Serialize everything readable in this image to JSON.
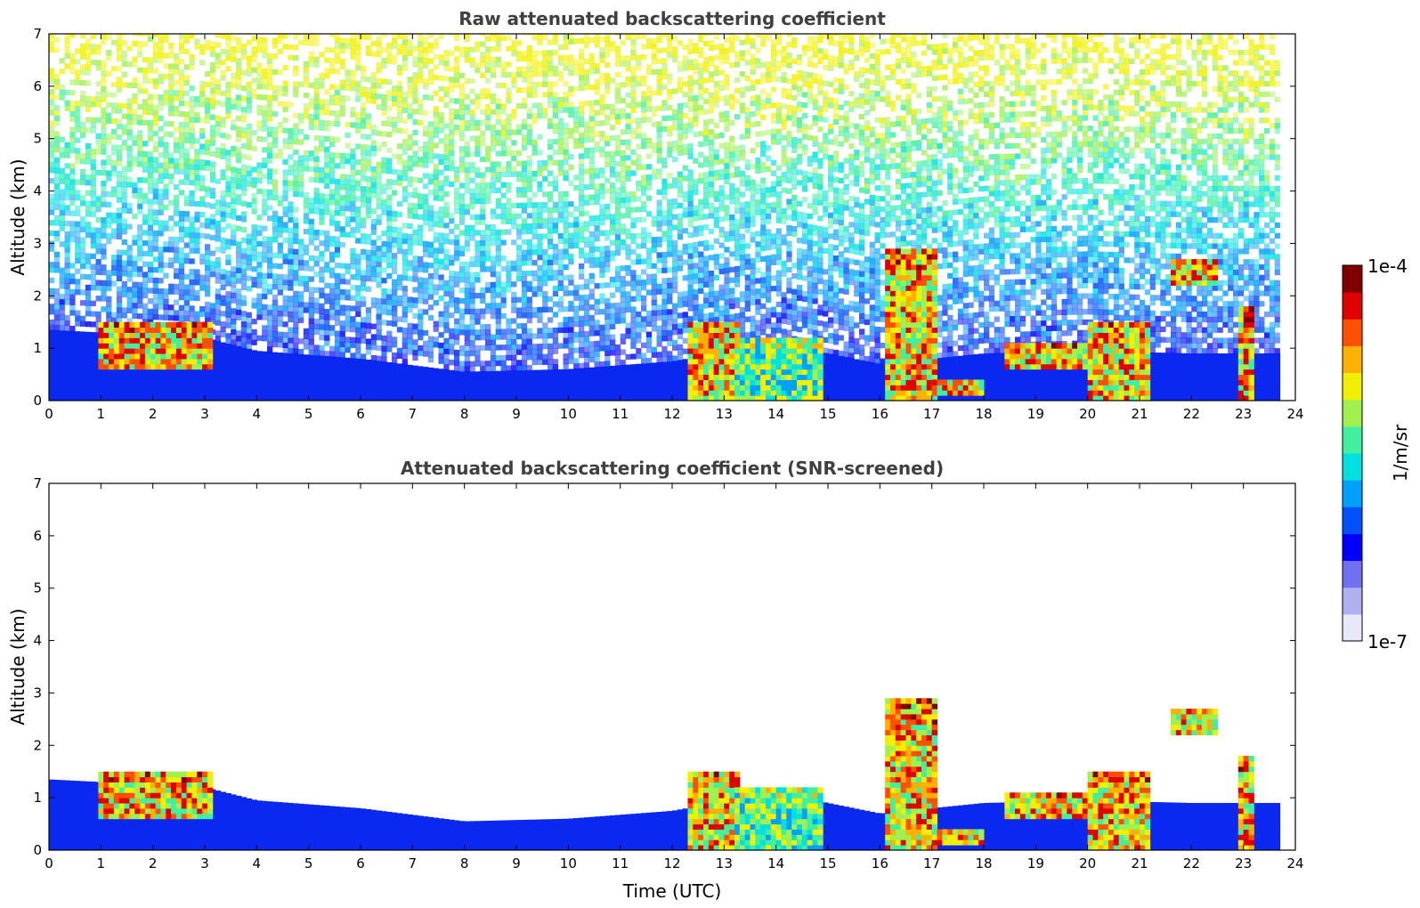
{
  "chart_data": [
    {
      "type": "heatmap",
      "title": "Raw attenuated backscattering coefficient",
      "xlabel": "",
      "ylabel": "Altitude (km)",
      "xlim": [
        0,
        24
      ],
      "ylim": [
        0,
        7
      ],
      "xticks": [
        "0",
        "1",
        "2",
        "3",
        "4",
        "5",
        "6",
        "7",
        "8",
        "9",
        "10",
        "11",
        "12",
        "13",
        "14",
        "15",
        "16",
        "17",
        "18",
        "19",
        "20",
        "21",
        "22",
        "23",
        "24"
      ],
      "yticks": [
        "0",
        "1",
        "2",
        "3",
        "4",
        "5",
        "6",
        "7"
      ],
      "data_end_hour": 23.65,
      "boundary_layer_top_km": [
        [
          0,
          1.35
        ],
        [
          3,
          1.2
        ],
        [
          4,
          0.95
        ],
        [
          6,
          0.8
        ],
        [
          8,
          0.55
        ],
        [
          10,
          0.6
        ],
        [
          12,
          0.75
        ],
        [
          14,
          1.1
        ],
        [
          16,
          0.7
        ],
        [
          18,
          0.9
        ],
        [
          20,
          0.95
        ],
        [
          22,
          0.9
        ],
        [
          23.65,
          0.9
        ]
      ],
      "cloud_features": [
        {
          "start_h": 0.95,
          "end_h": 3.1,
          "base_km": 0.6,
          "top_km": 1.45,
          "intensity": "high"
        },
        {
          "start_h": 12.3,
          "end_h": 13.2,
          "base_km": 0.0,
          "top_km": 1.5,
          "intensity": "high"
        },
        {
          "start_h": 13.2,
          "end_h": 14.8,
          "base_km": 0.0,
          "top_km": 1.15,
          "intensity": "medium"
        },
        {
          "start_h": 16.1,
          "end_h": 17.1,
          "base_km": 0.0,
          "top_km": 2.9,
          "intensity": "high"
        },
        {
          "start_h": 17.0,
          "end_h": 18.0,
          "base_km": 0.1,
          "top_km": 0.4,
          "intensity": "high"
        },
        {
          "start_h": 18.4,
          "end_h": 20.8,
          "base_km": 0.6,
          "top_km": 1.0,
          "intensity": "high"
        },
        {
          "start_h": 20.0,
          "end_h": 21.2,
          "base_km": 0.0,
          "top_km": 1.5,
          "intensity": "high"
        },
        {
          "start_h": 21.6,
          "end_h": 22.5,
          "base_km": 2.2,
          "top_km": 2.7,
          "intensity": "high"
        },
        {
          "start_h": 22.9,
          "end_h": 23.2,
          "base_km": 0.0,
          "top_km": 1.8,
          "intensity": "high"
        }
      ]
    },
    {
      "type": "heatmap",
      "title": "Attenuated backscattering coefficient (SNR-screened)",
      "xlabel": "Time (UTC)",
      "ylabel": "Altitude (km)",
      "xlim": [
        0,
        24
      ],
      "ylim": [
        0,
        7
      ],
      "xticks": [
        "0",
        "1",
        "2",
        "3",
        "4",
        "5",
        "6",
        "7",
        "8",
        "9",
        "10",
        "11",
        "12",
        "13",
        "14",
        "15",
        "16",
        "17",
        "18",
        "19",
        "20",
        "21",
        "22",
        "23",
        "24"
      ],
      "yticks": [
        "0",
        "1",
        "2",
        "3",
        "4",
        "5",
        "6",
        "7"
      ]
    }
  ],
  "colorbar": {
    "label": "1/m/sr",
    "max_label": "1e-4",
    "min_label": "1e-7",
    "colors": [
      "#e8e8f8",
      "#b0b0f0",
      "#7070f0",
      "#0000ff",
      "#0050ff",
      "#00a0ff",
      "#00e0e0",
      "#40f0a0",
      "#a0f050",
      "#f0f000",
      "#ffb000",
      "#ff5000",
      "#e00000",
      "#800000"
    ]
  }
}
